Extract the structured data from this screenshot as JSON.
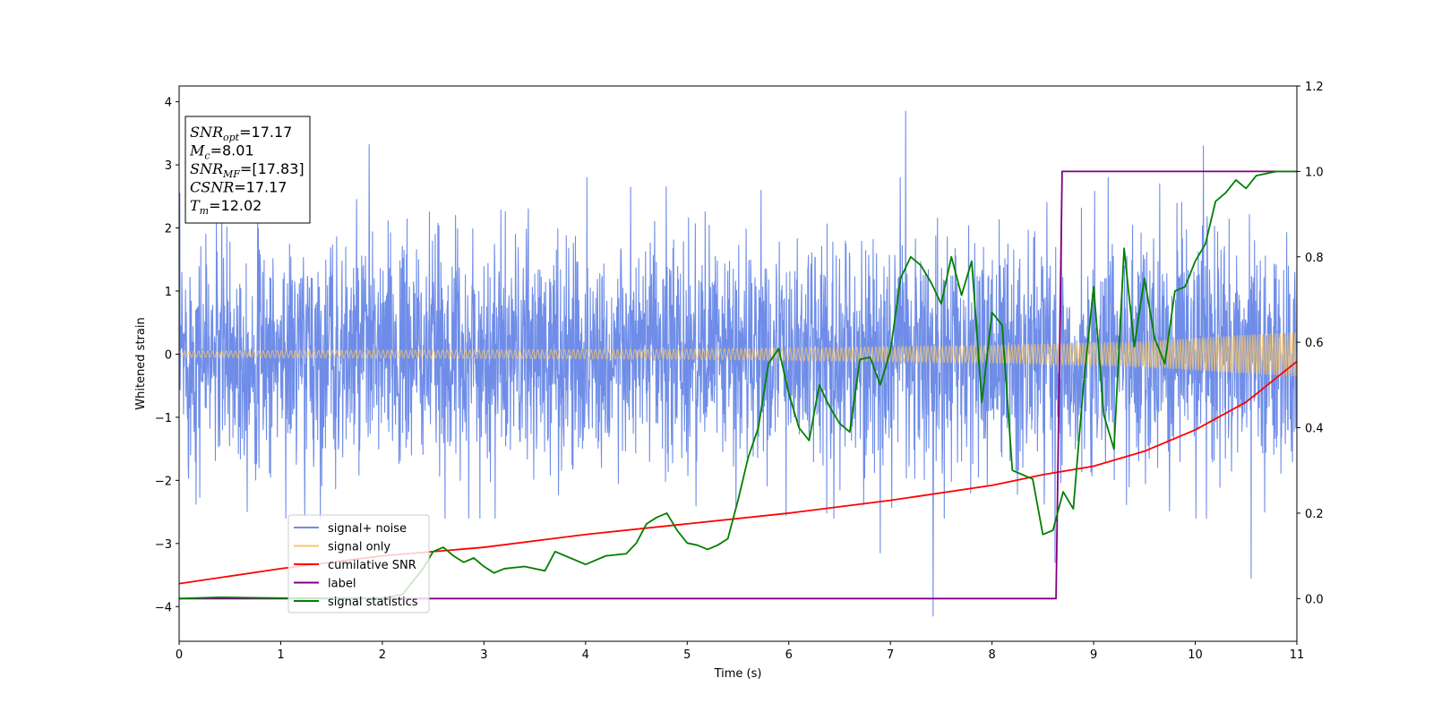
{
  "chart_data": {
    "type": "line",
    "xlabel": "Time (s)",
    "ylabel": "Whitened strain",
    "xlim": [
      0,
      11
    ],
    "ylim": [
      -4.55,
      4.25
    ],
    "y2lim": [
      -0.1,
      1.2
    ],
    "xticks": [
      "0",
      "1",
      "2",
      "3",
      "4",
      "5",
      "6",
      "7",
      "8",
      "9",
      "10",
      "11"
    ],
    "yticks": [
      "−4",
      "−3",
      "−2",
      "−1",
      "0",
      "1",
      "2",
      "3",
      "4"
    ],
    "y2ticks": [
      "0.0",
      "0.2",
      "0.4",
      "0.6",
      "0.8",
      "1.0",
      "1.2"
    ],
    "grid": false,
    "legend_position": "lower-left",
    "info_box": {
      "position": "top-left",
      "lines": [
        {
          "sym": "SNR",
          "sub": "opt",
          "text": "=17.17"
        },
        {
          "sym": "M",
          "sub": "c",
          "text": "=8.01"
        },
        {
          "sym": "SNR",
          "sub": "MF",
          "text": "=[17.83]"
        },
        {
          "sym": "CSNR",
          "sub": "",
          "text": "=17.17"
        },
        {
          "sym": "T",
          "sub": "m",
          "text": "=12.02"
        }
      ]
    },
    "series": [
      {
        "name": "signal+ noise",
        "axis": "left",
        "color": "#6f8de8",
        "kind": "noise",
        "sample_rate_hz": 300,
        "band_sd": 0.9,
        "typical_extent": [
          -2.3,
          2.3
        ],
        "peak_spikes": [
          [
            1.87,
            3.32
          ],
          [
            7.15,
            3.85
          ],
          [
            10.08,
            3.3
          ],
          [
            7.42,
            -4.15
          ],
          [
            10.55,
            -3.55
          ],
          [
            6.9,
            -3.15
          ],
          [
            8.62,
            -3.3
          ]
        ]
      },
      {
        "name": "signal only",
        "axis": "left",
        "color": "#f6c66a",
        "kind": "chirp",
        "amplitude": [
          [
            0,
            0.05
          ],
          [
            5,
            0.08
          ],
          [
            8,
            0.14
          ],
          [
            9.5,
            0.2
          ],
          [
            11,
            0.35
          ]
        ]
      },
      {
        "name": "cumilative SNR",
        "axis": "right",
        "color": "#ff0000",
        "x": [
          0,
          1,
          2,
          3,
          4,
          5,
          6,
          7,
          8,
          8.5,
          9,
          9.5,
          10,
          10.5,
          11
        ],
        "y": [
          0.035,
          0.07,
          0.1,
          0.12,
          0.15,
          0.175,
          0.2,
          0.23,
          0.265,
          0.29,
          0.31,
          0.345,
          0.395,
          0.46,
          0.555
        ]
      },
      {
        "name": "label",
        "axis": "right",
        "color": "#800080",
        "x": [
          0,
          8.63,
          8.69,
          11
        ],
        "y": [
          0.0,
          0.0,
          1.0,
          1.0
        ]
      },
      {
        "name": "signal statistics",
        "axis": "right",
        "color": "#008000",
        "x": [
          0,
          0.4,
          1.0,
          1.5,
          2.0,
          2.2,
          2.3,
          2.4,
          2.5,
          2.6,
          2.7,
          2.8,
          2.9,
          3.0,
          3.1,
          3.2,
          3.4,
          3.6,
          3.7,
          3.8,
          4.0,
          4.2,
          4.4,
          4.5,
          4.6,
          4.7,
          4.8,
          4.9,
          5.0,
          5.1,
          5.2,
          5.3,
          5.4,
          5.5,
          5.6,
          5.7,
          5.8,
          5.9,
          6.0,
          6.1,
          6.2,
          6.3,
          6.4,
          6.5,
          6.6,
          6.7,
          6.8,
          6.9,
          7.0,
          7.1,
          7.2,
          7.3,
          7.4,
          7.5,
          7.6,
          7.7,
          7.8,
          7.9,
          8.0,
          8.1,
          8.2,
          8.3,
          8.4,
          8.5,
          8.6,
          8.7,
          8.8,
          8.9,
          9.0,
          9.1,
          9.2,
          9.3,
          9.4,
          9.5,
          9.6,
          9.7,
          9.8,
          9.9,
          10.0,
          10.1,
          10.2,
          10.3,
          10.4,
          10.5,
          10.6,
          10.8,
          11.0
        ],
        "y": [
          0.0,
          0.003,
          0.001,
          0.001,
          0.001,
          0.01,
          0.04,
          0.07,
          0.11,
          0.12,
          0.1,
          0.085,
          0.095,
          0.075,
          0.06,
          0.07,
          0.075,
          0.065,
          0.11,
          0.1,
          0.08,
          0.1,
          0.105,
          0.13,
          0.175,
          0.19,
          0.2,
          0.16,
          0.13,
          0.125,
          0.115,
          0.125,
          0.14,
          0.23,
          0.33,
          0.4,
          0.55,
          0.585,
          0.48,
          0.4,
          0.37,
          0.5,
          0.45,
          0.41,
          0.39,
          0.56,
          0.565,
          0.5,
          0.58,
          0.75,
          0.8,
          0.78,
          0.74,
          0.69,
          0.8,
          0.71,
          0.79,
          0.46,
          0.67,
          0.64,
          0.3,
          0.29,
          0.28,
          0.15,
          0.16,
          0.25,
          0.21,
          0.5,
          0.73,
          0.43,
          0.35,
          0.82,
          0.59,
          0.75,
          0.61,
          0.55,
          0.72,
          0.73,
          0.79,
          0.83,
          0.93,
          0.95,
          0.98,
          0.96,
          0.99,
          1.0,
          1.0
        ]
      }
    ]
  }
}
